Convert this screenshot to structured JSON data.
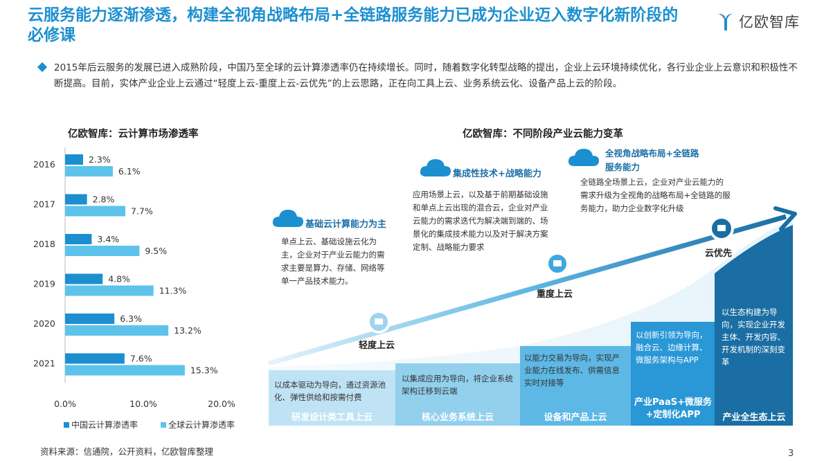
{
  "title": "云服务能力逐渐渗透，构建全视角战略布局+全链路服务能力已成为企业迈入数字化新阶段的必修课",
  "logo": {
    "text": "亿欧智库"
  },
  "intro": "2015年后云服务的发展已进入成熟阶段，中国乃至全球的云计算渗透率仍在持续增长。同时，随着数字化转型战略的提出，企业上云环境持续优化，各行业企业上云意识和积极性不断提高。目前，实体产业企业上云通过“轻度上云-重度上云-云优先”的上云思路，正在向工具上云、业务系统云化、设备产品上云的阶段。",
  "left_chart_title": "亿欧智库：云计算市场渗透率",
  "right_chart_title": "亿欧智库：不同阶段产业云能力变革",
  "chart_data": {
    "type": "bar",
    "orientation": "horizontal",
    "categories": [
      "2016",
      "2017",
      "2018",
      "2019",
      "2020",
      "2021"
    ],
    "series": [
      {
        "name": "中国云计算渗透率",
        "values": [
          2.3,
          2.8,
          3.4,
          4.8,
          6.3,
          7.6
        ],
        "labels": [
          "2.3%",
          "2.8%",
          "3.4%",
          "4.8%",
          "6.3%",
          "7.6%"
        ],
        "color": "#1c8fd0"
      },
      {
        "name": "全球云计算渗透率",
        "values": [
          6.1,
          7.7,
          9.5,
          11.3,
          13.2,
          15.3
        ],
        "labels": [
          "6.1%",
          "7.7%",
          "9.5%",
          "11.3%",
          "13.2%",
          "15.3%"
        ],
        "color": "#5dc3ea"
      }
    ],
    "xlim": [
      0,
      20
    ],
    "xticks": [
      0,
      10,
      20
    ],
    "xtick_labels": [
      "0.0%",
      "10.0%",
      "20.0%"
    ],
    "legend_placement": "bottom",
    "grid": false
  },
  "stages": [
    {
      "title": "基础云计算能力为主",
      "desc": "单点上云、基础设施云化为主，企业对于产业云能力的需求主要是算力、存储、网络等单一产品技术能力。"
    },
    {
      "title": "集成性技术+战略能力",
      "desc": "应用场景上云，以及基于前期基础设施和单点上云出现的混合云，企业对产业云能力的需求迭代为解决端到端的、场景化的集成技术能力以及对于解决方案定制、战略能力要求"
    },
    {
      "title_line1": "全视角战略布局+全链路",
      "title_line2": "服务能力",
      "desc": "全链路全场景上云，企业对产业云能力的需求升级为全视角的战略布局+全链路的服务能力，助力企业数字化升级"
    }
  ],
  "points": [
    {
      "label": "轻度上云"
    },
    {
      "label": "重度上云"
    },
    {
      "label": "云优先"
    }
  ],
  "blocks": [
    {
      "text": "以成本驱动为导向，通过资源池化、弹性供给和按需付费",
      "footer": "研发设计类工具上云",
      "color": "#bfe3f5"
    },
    {
      "text": "以集成应用为导向，将企业系统架构迁移到云端",
      "footer": "核心业务系统上云",
      "color": "#92d0ee"
    },
    {
      "text": "以能力交易为导向，实现产业能力在线发布、供需信息实时对接等",
      "footer": "设备和产品上云",
      "color": "#5db8e6"
    },
    {
      "text": "以创新引领为导向，融合云、边缘计算、微服务架构与APP",
      "footer": "产业PaaS+微服务+定制化APP",
      "color": "#2a97d6"
    },
    {
      "text": "以生态构建为导向，实现企业开发主体、开发内容、开发机制的深刻变革",
      "footer": "产业全生态上云",
      "color": "#1a6ea3"
    }
  ],
  "source": "资料来源：信通院，公开资料，亿欧智库整理",
  "page_number": "3"
}
